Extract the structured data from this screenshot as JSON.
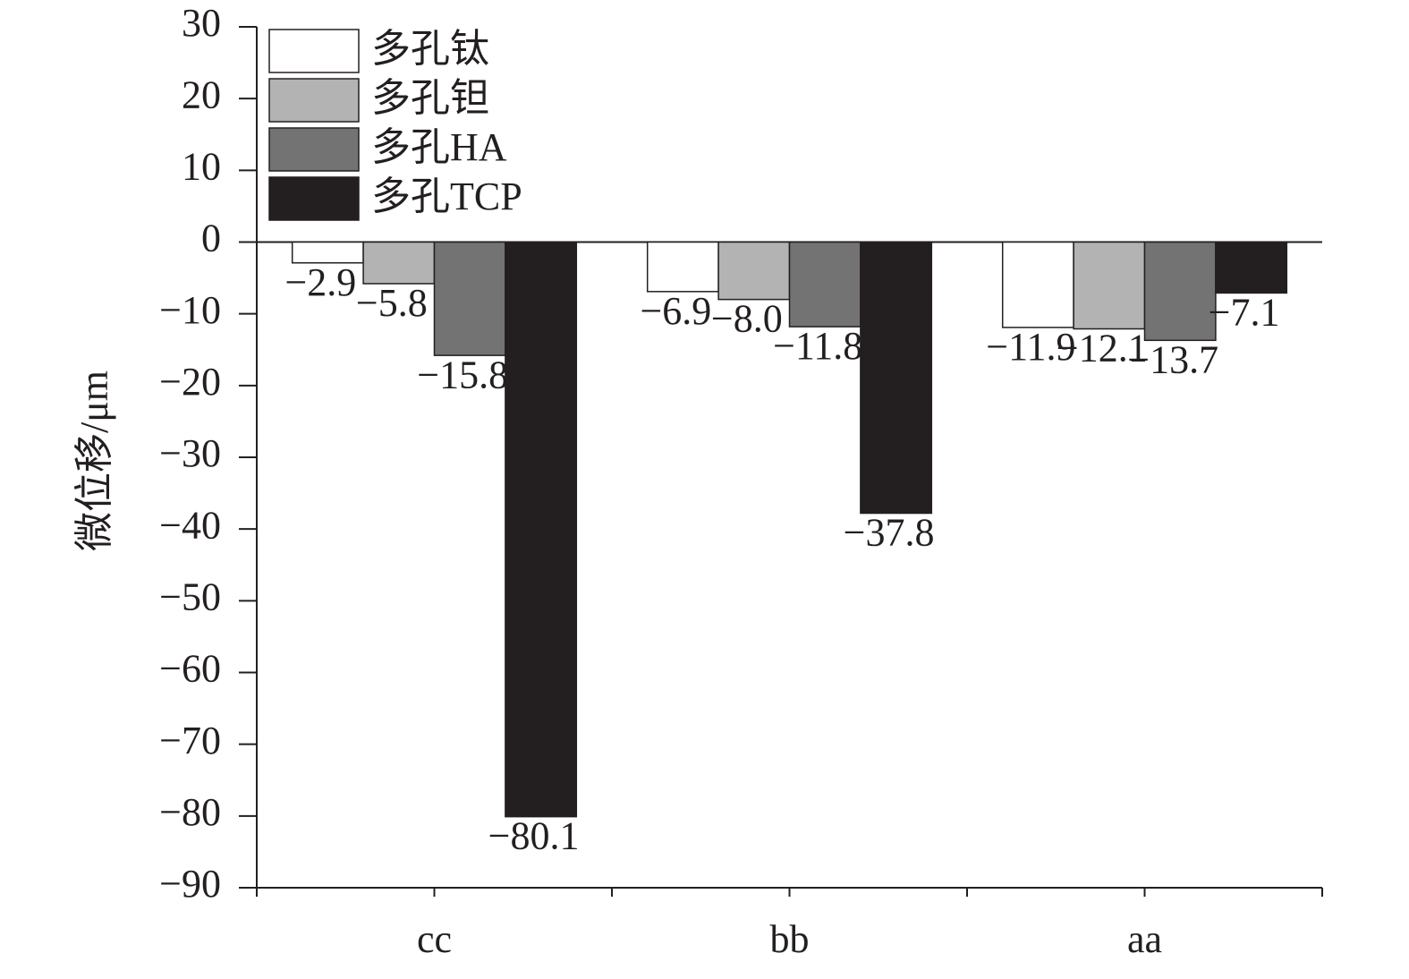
{
  "chart_data": {
    "type": "bar",
    "y_label": "微位移/μm",
    "categories": [
      "cc",
      "bb",
      "aa"
    ],
    "series": [
      {
        "name": "多孔钛",
        "color": "#ffffff",
        "values": [
          -2.9,
          -6.9,
          -11.9
        ],
        "value_labels": [
          "−2.9",
          "−6.9",
          "−11.9"
        ]
      },
      {
        "name": "多孔钽",
        "color": "#b3b3b3",
        "values": [
          -5.8,
          -8.0,
          -12.1
        ],
        "value_labels": [
          "−5.8",
          "−8.0",
          "−12.1"
        ]
      },
      {
        "name": "多孔HA",
        "color": "#737373",
        "values": [
          -15.8,
          -11.8,
          -13.7
        ],
        "value_labels": [
          "−15.8",
          "−11.8",
          "−13.7"
        ]
      },
      {
        "name": "多孔TCP",
        "color": "#231f20",
        "values": [
          -80.1,
          -37.8,
          -7.1
        ],
        "value_labels": [
          "−80.1",
          "−37.8",
          "−7.1"
        ]
      }
    ],
    "ylim": [
      -90,
      30
    ],
    "yticks": [
      30,
      20,
      10,
      0,
      {
        "value": -10,
        "label": "−10"
      },
      {
        "value": -20,
        "label": "−20"
      },
      {
        "value": -30,
        "label": "−30"
      },
      {
        "value": -40,
        "label": "−40"
      },
      {
        "value": -50,
        "label": "−50"
      },
      {
        "value": -60,
        "label": "−60"
      },
      {
        "value": -70,
        "label": "−70"
      },
      {
        "value": -80,
        "label": "−80"
      },
      {
        "value": -90,
        "label": "−90"
      }
    ],
    "legend": "upper left"
  }
}
